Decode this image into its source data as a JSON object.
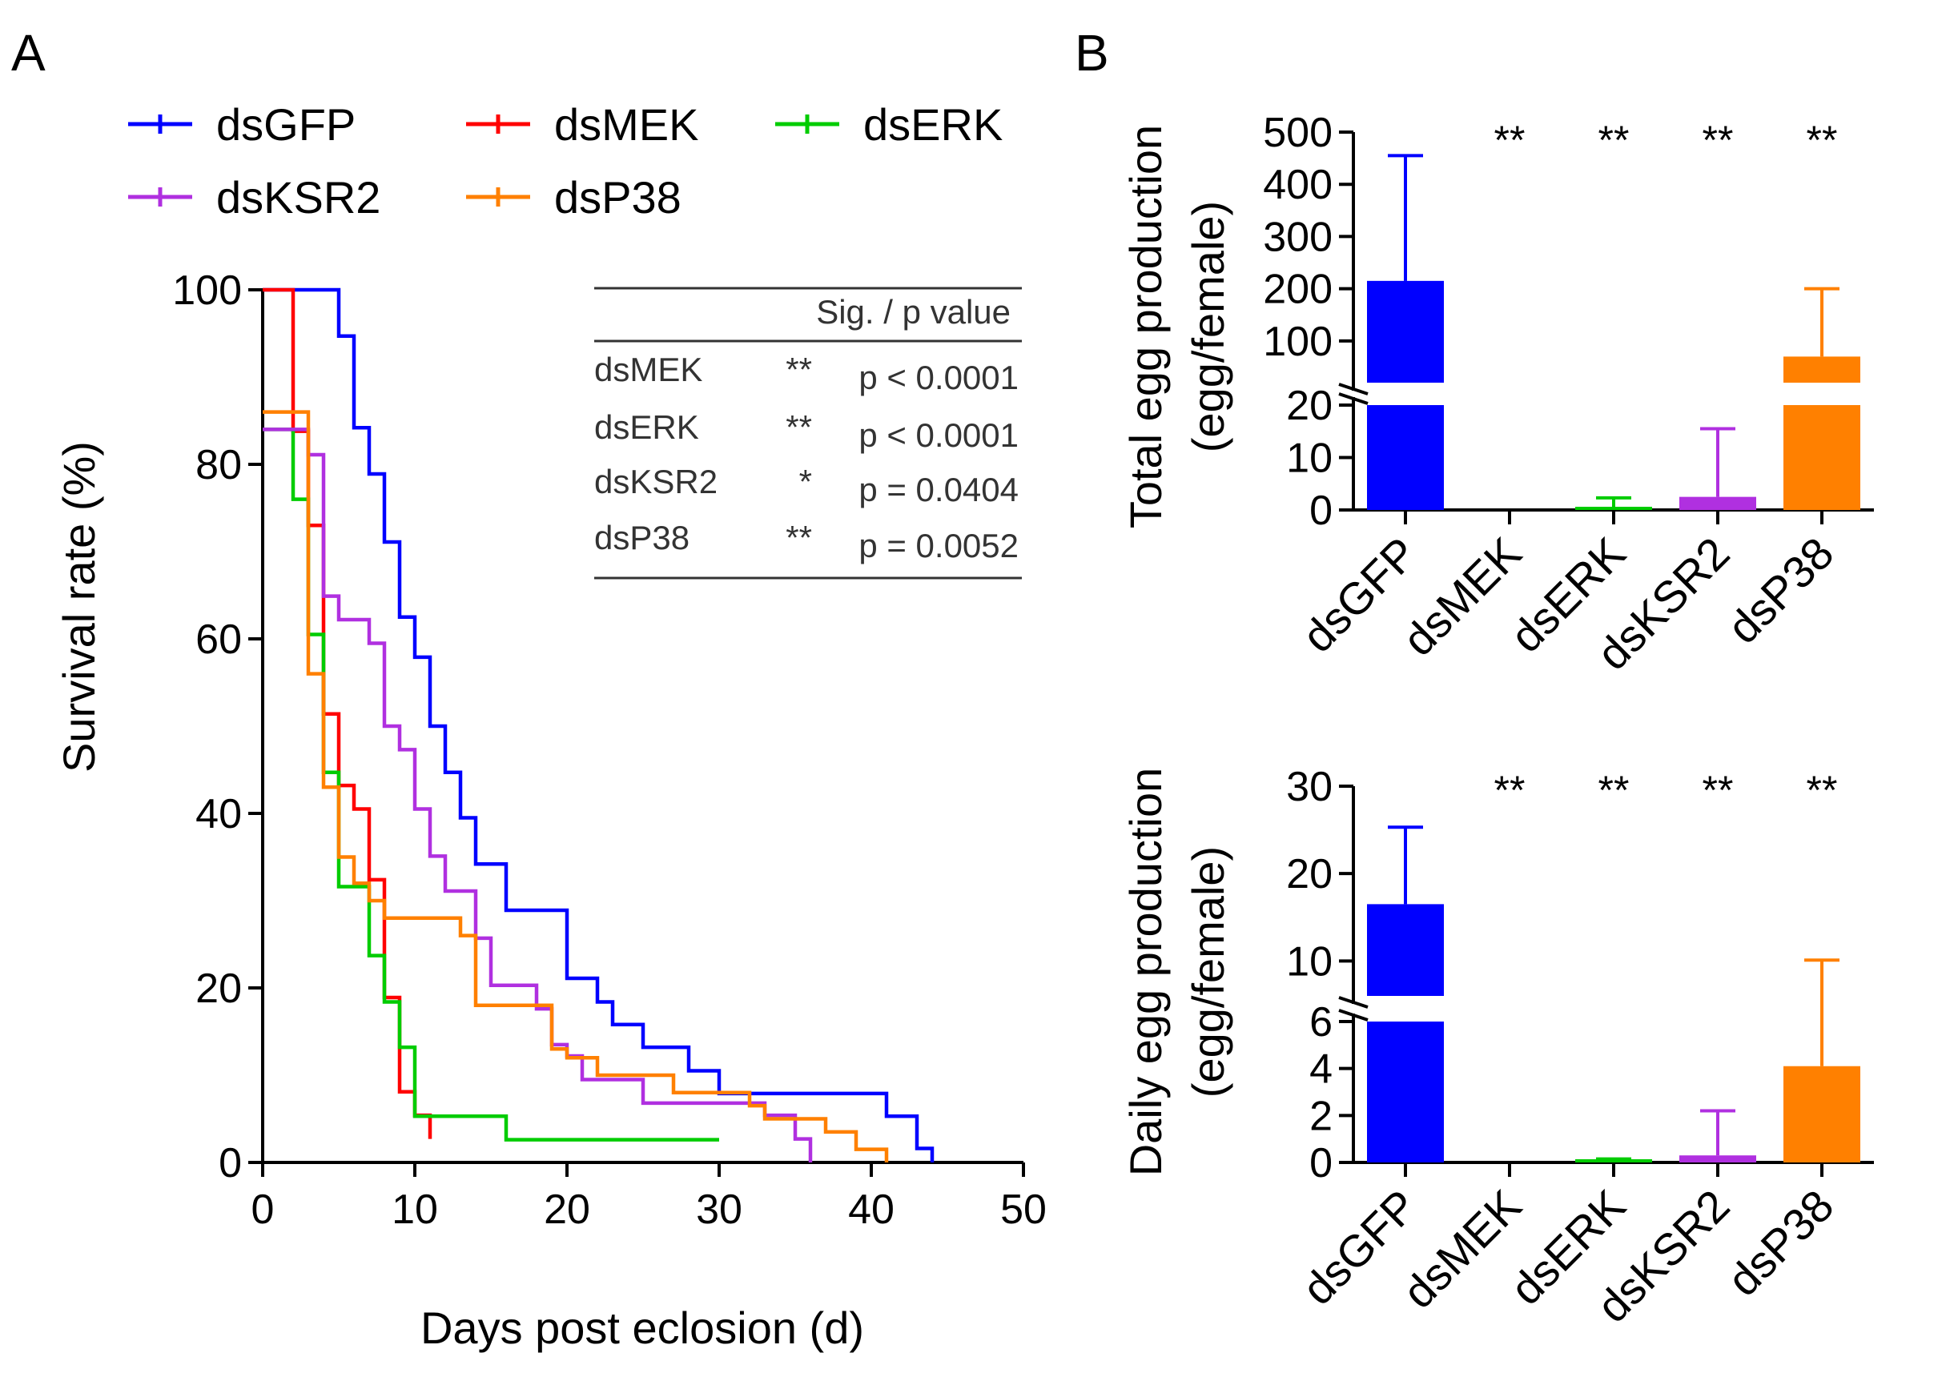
{
  "panels": {
    "a_letter": "A",
    "b_letter": "B"
  },
  "colors": {
    "dsGFP": "#0000ff",
    "dsMEK": "#ff0000",
    "dsERK": "#00cc00",
    "dsKSR2": "#b030e0",
    "dsP38": "#ff8000"
  },
  "chart_data": [
    {
      "type": "line",
      "subtype": "kaplan-meier survival step curve",
      "xlabel": "Days post eclosion (d)",
      "ylabel": "Survival rate (%)",
      "xlim": [
        0,
        50
      ],
      "ylim": [
        0,
        100
      ],
      "xticks": [
        "0",
        "10",
        "20",
        "30",
        "40",
        "50"
      ],
      "yticks": [
        "0",
        "20",
        "40",
        "60",
        "80",
        "100"
      ],
      "legend_position": "top",
      "series": [
        {
          "name": "dsGFP",
          "color": "#0000ff",
          "x": [
            0,
            4,
            5,
            6,
            7,
            8,
            9,
            10,
            11,
            12,
            13,
            14,
            16,
            20,
            21,
            22,
            23,
            25,
            28,
            30,
            37,
            41,
            43,
            44
          ],
          "y": [
            100,
            100,
            94.7,
            84.2,
            78.9,
            71.1,
            62.5,
            57.9,
            50,
            44.7,
            39.5,
            34.2,
            28.9,
            21.1,
            21.1,
            18.4,
            15.8,
            13.2,
            10.5,
            7.9,
            7.9,
            5.3,
            1.6,
            0
          ]
        },
        {
          "name": "dsMEK",
          "color": "#ff0000",
          "x": [
            0,
            1,
            2,
            3,
            4,
            5,
            6,
            7,
            8,
            9,
            10,
            11
          ],
          "y": [
            100,
            100,
            83.8,
            73,
            51.4,
            43.2,
            40.5,
            32.4,
            18.9,
            8.1,
            5.4,
            2.7
          ]
        },
        {
          "name": "dsERK",
          "color": "#00cc00",
          "x": [
            0,
            1,
            2,
            3,
            4,
            5,
            7,
            8,
            9,
            10,
            16,
            30
          ],
          "y": [
            84,
            84,
            76,
            60.5,
            44.7,
            31.6,
            23.7,
            18.4,
            13.2,
            5.3,
            2.6,
            2.6
          ]
        },
        {
          "name": "dsKSR2",
          "color": "#b030e0",
          "x": [
            0,
            2,
            3,
            4,
            5,
            7,
            8,
            9,
            10,
            11,
            12,
            14,
            15,
            18,
            19,
            20,
            21,
            22,
            24,
            25,
            33,
            35,
            36
          ],
          "y": [
            84,
            84,
            81.1,
            64.9,
            62.2,
            59.5,
            50,
            47.3,
            40.5,
            35.1,
            31.1,
            25.7,
            20.3,
            17.6,
            13.5,
            12.2,
            9.5,
            9.5,
            9.5,
            6.8,
            5.4,
            2.7,
            0
          ]
        },
        {
          "name": "dsP38",
          "color": "#ff8000",
          "x": [
            0,
            1,
            2,
            3,
            4,
            5,
            6,
            7,
            8,
            13,
            14,
            15,
            18,
            19,
            20,
            22,
            24,
            27,
            32,
            33,
            37,
            39,
            41
          ],
          "y": [
            86,
            86,
            86,
            56,
            43,
            35,
            32,
            30,
            28,
            26,
            18,
            18,
            18,
            13,
            12,
            10,
            10,
            8,
            6.5,
            5,
            3.5,
            1.5,
            0
          ]
        }
      ],
      "table": {
        "header": "Sig. / p value",
        "rows": [
          {
            "label": "dsMEK",
            "sig": "**",
            "p": "p < 0.0001"
          },
          {
            "label": "dsERK",
            "sig": "**",
            "p": "p < 0.0001"
          },
          {
            "label": "dsKSR2",
            "sig": "*",
            "p": "p = 0.0404"
          },
          {
            "label": "dsP38",
            "sig": "**",
            "p": "p = 0.0052"
          }
        ]
      }
    },
    {
      "type": "bar",
      "ylabel": "Total egg production",
      "ylabel2": "(egg/female)",
      "categories": [
        "dsGFP",
        "dsMEK",
        "dsERK",
        "dsKSR2",
        "dsP38"
      ],
      "values": [
        215,
        0,
        0.3,
        2.5,
        70
      ],
      "errors": [
        240,
        0,
        2,
        13,
        130
      ],
      "significance": [
        "",
        "**",
        "**",
        "**",
        "**"
      ],
      "y_axis_break": {
        "lower_range": [
          0,
          20
        ],
        "upper_range": [
          20,
          500
        ]
      },
      "ylim": [
        0,
        500
      ],
      "yticks_lower": [
        "0",
        "10",
        "20"
      ],
      "yticks_upper": [
        "100",
        "200",
        "300",
        "400",
        "500"
      ]
    },
    {
      "type": "bar",
      "ylabel": "Daily egg production",
      "ylabel2": "(egg/female)",
      "categories": [
        "dsGFP",
        "dsMEK",
        "dsERK",
        "dsKSR2",
        "dsP38"
      ],
      "values": [
        16.5,
        0,
        0.05,
        0.3,
        4.1
      ],
      "errors": [
        8.8,
        0,
        0.1,
        1.9,
        6.0
      ],
      "significance": [
        "",
        "**",
        "**",
        "**",
        "**"
      ],
      "y_axis_break": {
        "lower_range": [
          0,
          6
        ],
        "upper_range": [
          6,
          30
        ]
      },
      "ylim": [
        0,
        30
      ],
      "yticks_lower": [
        "0",
        "2",
        "4",
        "6"
      ],
      "yticks_upper": [
        "10",
        "20",
        "30"
      ]
    }
  ]
}
